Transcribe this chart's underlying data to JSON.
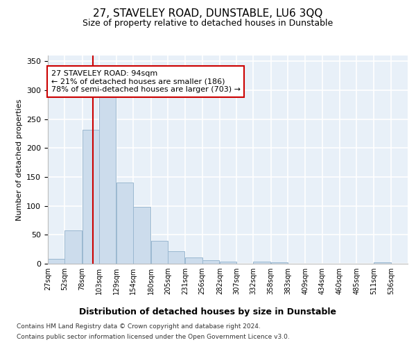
{
  "title": "27, STAVELEY ROAD, DUNSTABLE, LU6 3QQ",
  "subtitle": "Size of property relative to detached houses in Dunstable",
  "xlabel": "Distribution of detached houses by size in Dunstable",
  "ylabel": "Number of detached properties",
  "bar_color": "#ccdcec",
  "bar_edge_color": "#9ab8d0",
  "background_color": "#e8f0f8",
  "grid_color": "#ffffff",
  "bin_starts": [
    27,
    52,
    78,
    103,
    129,
    154,
    180,
    205,
    231,
    256,
    282,
    307,
    332,
    358,
    383,
    409,
    434,
    460,
    485,
    511
  ],
  "bin_width": 25,
  "bar_heights": [
    8,
    58,
    232,
    288,
    141,
    98,
    40,
    22,
    11,
    6,
    4,
    0,
    4,
    3,
    0,
    0,
    0,
    0,
    0,
    2
  ],
  "property_sqm": 94,
  "vline_color": "#cc0000",
  "annotation_text": "27 STAVELEY ROAD: 94sqm\n← 21% of detached houses are smaller (186)\n78% of semi-detached houses are larger (703) →",
  "annotation_box_color": "#ffffff",
  "annotation_box_edge": "#cc0000",
  "ylim": [
    0,
    360
  ],
  "yticks": [
    0,
    50,
    100,
    150,
    200,
    250,
    300,
    350
  ],
  "footer_line1": "Contains HM Land Registry data © Crown copyright and database right 2024.",
  "footer_line2": "Contains public sector information licensed under the Open Government Licence v3.0."
}
